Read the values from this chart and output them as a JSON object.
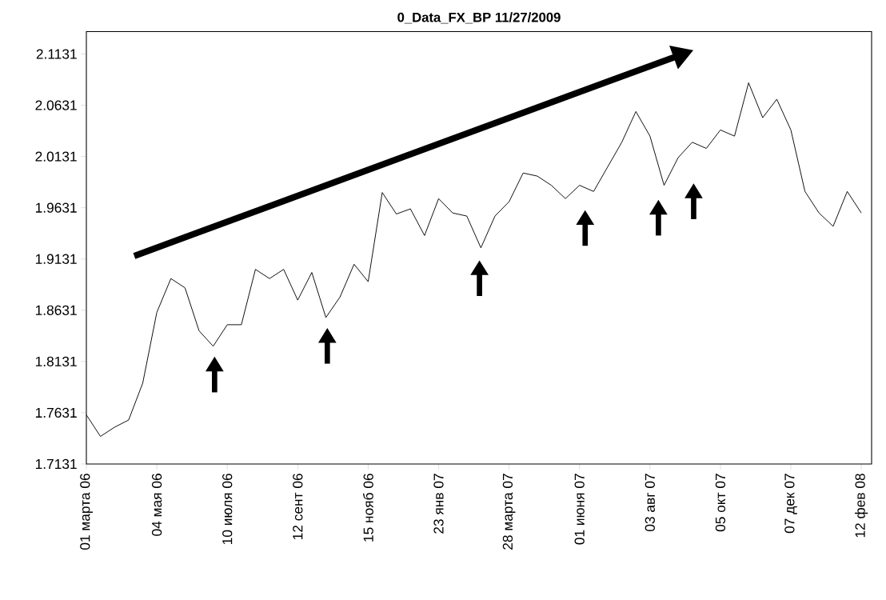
{
  "chart_data": {
    "type": "line",
    "title": "0_Data_FX_BP 11/27/2009",
    "categories": [
      "01 марта 06",
      null,
      null,
      null,
      null,
      "04 мая 06",
      null,
      null,
      null,
      null,
      "10 июля 06",
      null,
      null,
      null,
      null,
      "12 сент 06",
      null,
      null,
      null,
      null,
      "15 нояб 06",
      null,
      null,
      null,
      null,
      "23 янв 07",
      null,
      null,
      null,
      null,
      "28 марта 07",
      null,
      null,
      null,
      null,
      "01 июня 07",
      null,
      null,
      null,
      null,
      "03 авг 07",
      null,
      null,
      null,
      null,
      "05 окт 07",
      null,
      null,
      null,
      null,
      "07 дек 07",
      null,
      null,
      null,
      null,
      "12 фев 08"
    ],
    "values": [
      1.761,
      1.74,
      1.749,
      1.756,
      1.792,
      1.861,
      1.894,
      1.885,
      1.843,
      1.828,
      1.849,
      1.849,
      1.903,
      1.894,
      1.903,
      1.873,
      1.9,
      1.856,
      1.876,
      1.908,
      1.891,
      1.978,
      1.957,
      1.962,
      1.936,
      1.972,
      1.958,
      1.955,
      1.924,
      1.955,
      1.969,
      1.997,
      1.994,
      1.985,
      1.972,
      1.985,
      1.979,
      2.003,
      2.027,
      2.057,
      2.033,
      1.985,
      2.012,
      2.027,
      2.021,
      2.039,
      2.033,
      2.085,
      2.051,
      2.069,
      2.039,
      1.979,
      1.958,
      1.945,
      1.979,
      1.958
    ],
    "color": "#000000",
    "ylim": [
      1.7131,
      2.135
    ],
    "yticks": [
      1.7131,
      1.7631,
      1.8131,
      1.8631,
      1.9131,
      1.9631,
      2.0131,
      2.0631,
      2.1131
    ]
  }
}
